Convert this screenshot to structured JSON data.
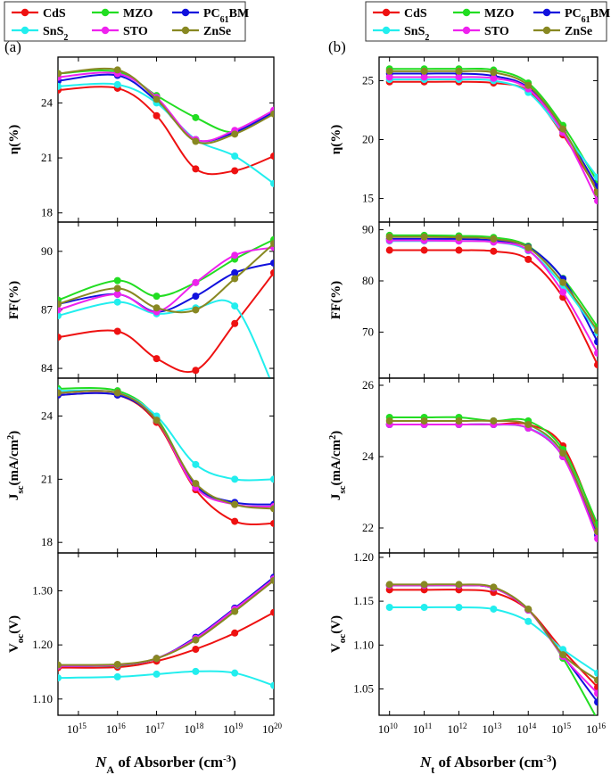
{
  "legend": [
    {
      "name": "CdS",
      "color": "#ee1111"
    },
    {
      "name": "MZO",
      "color": "#22dd22"
    },
    {
      "name": "PC",
      "sub": "61",
      "tail": "BM",
      "color": "#1111dd"
    },
    {
      "name": "SnS",
      "sub": "2",
      "tail": "",
      "color": "#22eeee"
    },
    {
      "name": "STO",
      "color": "#ee22ee"
    },
    {
      "name": "ZnSe",
      "color": "#888822"
    }
  ],
  "panels": [
    {
      "label": "(a)",
      "xlabel_sym": "N",
      "xlabel_sub": "A",
      "xlabel_rest": " of Absorber (cm",
      "xlabel_sup": "-3",
      "xlabel_end": ")"
    },
    {
      "label": "(b)",
      "xlabel_sym": "N",
      "xlabel_sub": "t",
      "xlabel_rest": " of Absorber (cm",
      "xlabel_sup": "-3",
      "xlabel_end": ")"
    }
  ],
  "chart_data": [
    {
      "panel": "(a)",
      "type": "line",
      "x_scale": "log",
      "xlim": [
        300000000000000.0,
        1e+20
      ],
      "x_ticks": [
        {
          "v": 1000000000000000.0,
          "label": "15"
        },
        {
          "v": 1e+16,
          "label": "16"
        },
        {
          "v": 1e+17,
          "label": "17"
        },
        {
          "v": 1e+18,
          "label": "18"
        },
        {
          "v": 1e+19,
          "label": "19"
        },
        {
          "v": 1e+20,
          "label": "20"
        }
      ],
      "x": [
        300000000000000.0,
        1e+16,
        1e+17,
        1e+18,
        1e+19,
        1e+20
      ],
      "subplots": [
        {
          "ylabel": "η(%)",
          "ylim": [
            17.5,
            26.5
          ],
          "yticks": [
            18,
            21,
            24
          ],
          "series": [
            {
              "name": "CdS",
              "values": [
                24.7,
                24.8,
                23.3,
                20.4,
                20.3,
                21.1
              ]
            },
            {
              "name": "MZO",
              "values": [
                25.6,
                25.7,
                24.4,
                23.2,
                22.4,
                23.5
              ]
            },
            {
              "name": "PC61BM",
              "values": [
                25.2,
                25.5,
                24.1,
                22.0,
                22.4,
                23.5
              ]
            },
            {
              "name": "SnS2",
              "values": [
                24.9,
                25.0,
                24.0,
                22.0,
                21.1,
                19.6
              ]
            },
            {
              "name": "STO",
              "values": [
                25.4,
                25.6,
                24.3,
                22.0,
                22.5,
                23.6
              ]
            },
            {
              "name": "ZnSe",
              "values": [
                25.6,
                25.8,
                24.2,
                21.9,
                22.3,
                23.4
              ]
            }
          ]
        },
        {
          "ylabel": "FF(%)",
          "ylim": [
            83.5,
            91.5
          ],
          "yticks": [
            84,
            87,
            90
          ],
          "series": [
            {
              "name": "CdS",
              "values": [
                85.6,
                85.9,
                84.5,
                83.9,
                86.3,
                88.9
              ]
            },
            {
              "name": "MZO",
              "values": [
                87.5,
                88.5,
                87.7,
                88.4,
                89.6,
                90.6
              ]
            },
            {
              "name": "PC61BM",
              "values": [
                87.3,
                87.8,
                86.9,
                87.7,
                88.9,
                89.4
              ]
            },
            {
              "name": "SnS2",
              "values": [
                86.7,
                87.4,
                86.8,
                87.1,
                87.2,
                83.0
              ]
            },
            {
              "name": "STO",
              "values": [
                87.0,
                87.8,
                86.9,
                88.4,
                89.8,
                90.2
              ]
            },
            {
              "name": "ZnSe",
              "values": [
                87.3,
                88.1,
                87.1,
                87.0,
                88.6,
                90.4
              ]
            }
          ]
        },
        {
          "ylabel_main": "J",
          "ylabel_sub": "sc",
          "ylabel_rest": "(mA/cm",
          "ylabel_sup": "2",
          "ylabel_end": ")",
          "ylim": [
            17.5,
            25.8
          ],
          "yticks": [
            18,
            21,
            24
          ],
          "series": [
            {
              "name": "CdS",
              "values": [
                25.0,
                25.0,
                23.7,
                20.5,
                19.0,
                18.9
              ]
            },
            {
              "name": "MZO",
              "values": [
                25.3,
                25.2,
                23.9,
                20.7,
                19.8,
                19.7
              ]
            },
            {
              "name": "PC61BM",
              "values": [
                25.0,
                25.0,
                23.8,
                20.7,
                19.9,
                19.8
              ]
            },
            {
              "name": "SnS2",
              "values": [
                25.2,
                25.1,
                24.0,
                21.7,
                21.0,
                21.0
              ]
            },
            {
              "name": "STO",
              "values": [
                25.1,
                25.1,
                23.8,
                20.6,
                19.8,
                19.7
              ]
            },
            {
              "name": "ZnSe",
              "values": [
                25.1,
                25.1,
                23.8,
                20.8,
                19.8,
                19.6
              ]
            }
          ]
        },
        {
          "ylabel_main": "V",
          "ylabel_sub": "oc",
          "ylabel_rest": "(V)",
          "ylabel_end": "",
          "ylim": [
            1.07,
            1.37
          ],
          "yticks": [
            1.1,
            1.2,
            1.3
          ],
          "ytick_labels": [
            "1.10",
            "1.20",
            "1.30"
          ],
          "series": [
            {
              "name": "CdS",
              "values": [
                1.158,
                1.159,
                1.17,
                1.192,
                1.222,
                1.26
              ]
            },
            {
              "name": "MZO",
              "values": [
                1.161,
                1.162,
                1.175,
                1.21,
                1.262,
                1.322
              ]
            },
            {
              "name": "PC61BM",
              "values": [
                1.161,
                1.163,
                1.175,
                1.214,
                1.268,
                1.325
              ]
            },
            {
              "name": "SnS2",
              "values": [
                1.139,
                1.141,
                1.146,
                1.151,
                1.148,
                1.125
              ]
            },
            {
              "name": "STO",
              "values": [
                1.161,
                1.163,
                1.175,
                1.212,
                1.266,
                1.322
              ]
            },
            {
              "name": "ZnSe",
              "values": [
                1.163,
                1.164,
                1.175,
                1.209,
                1.262,
                1.319
              ]
            }
          ]
        }
      ]
    },
    {
      "panel": "(b)",
      "type": "line",
      "x_scale": "log",
      "xlim": [
        5000000000.0,
        1e+16
      ],
      "x_ticks": [
        {
          "v": 10000000000.0,
          "label": "10"
        },
        {
          "v": 100000000000.0,
          "label": "11"
        },
        {
          "v": 1000000000000.0,
          "label": "12"
        },
        {
          "v": 10000000000000.0,
          "label": "13"
        },
        {
          "v": 100000000000000.0,
          "label": "14"
        },
        {
          "v": 1000000000000000.0,
          "label": "15"
        },
        {
          "v": 1e+16,
          "label": "16"
        }
      ],
      "x": [
        10000000000.0,
        100000000000.0,
        1000000000000.0,
        10000000000000.0,
        100000000000000.0,
        1000000000000000.0,
        1e+16
      ],
      "subplots": [
        {
          "ylabel": "η(%)",
          "ylim": [
            13,
            27
          ],
          "yticks": [
            15,
            20,
            25
          ],
          "series": [
            {
              "name": "CdS",
              "values": [
                24.9,
                24.9,
                24.9,
                24.8,
                24.1,
                20.4,
                15.7
              ]
            },
            {
              "name": "MZO",
              "values": [
                26.0,
                26.0,
                26.0,
                25.9,
                24.8,
                21.2,
                16.4
              ]
            },
            {
              "name": "PC61BM",
              "values": [
                25.6,
                25.6,
                25.6,
                25.4,
                24.4,
                20.8,
                16.0
              ]
            },
            {
              "name": "SnS2",
              "values": [
                25.1,
                25.1,
                25.1,
                25.0,
                24.0,
                20.6,
                16.8
              ]
            },
            {
              "name": "STO",
              "values": [
                25.3,
                25.3,
                25.3,
                25.2,
                24.3,
                20.6,
                14.8
              ]
            },
            {
              "name": "ZnSe",
              "values": [
                25.8,
                25.8,
                25.8,
                25.7,
                24.6,
                20.9,
                15.5
              ]
            }
          ]
        },
        {
          "ylabel": "FF(%)",
          "ylim": [
            61,
            91.5
          ],
          "yticks": [
            70,
            80,
            90
          ],
          "series": [
            {
              "name": "CdS",
              "values": [
                86.0,
                86.0,
                86.0,
                85.8,
                84.2,
                76.8,
                63.6
              ]
            },
            {
              "name": "MZO",
              "values": [
                88.9,
                88.9,
                88.8,
                88.5,
                86.8,
                80.5,
                71.0
              ]
            },
            {
              "name": "PC61BM",
              "values": [
                88.2,
                88.2,
                88.2,
                87.9,
                86.6,
                80.4,
                68.1
              ]
            },
            {
              "name": "SnS2",
              "values": [
                87.8,
                87.8,
                87.8,
                87.6,
                85.9,
                79.1,
                69.9
              ]
            },
            {
              "name": "STO",
              "values": [
                87.9,
                87.9,
                87.8,
                87.6,
                86.0,
                77.8,
                65.9
              ]
            },
            {
              "name": "ZnSe",
              "values": [
                88.6,
                88.6,
                88.5,
                88.2,
                86.5,
                79.7,
                70.3
              ]
            }
          ]
        },
        {
          "ylabel_main": "J",
          "ylabel_sub": "sc",
          "ylabel_rest": "(mA/cm",
          "ylabel_sup": "2",
          "ylabel_end": ")",
          "ylim": [
            21.3,
            26.2
          ],
          "yticks": [
            22,
            24,
            26
          ],
          "series": [
            {
              "name": "CdS",
              "values": [
                24.9,
                24.9,
                24.9,
                24.9,
                24.9,
                24.3,
                22.0
              ]
            },
            {
              "name": "MZO",
              "values": [
                25.1,
                25.1,
                25.1,
                25.0,
                25.0,
                24.2,
                22.1
              ]
            },
            {
              "name": "PC61BM",
              "values": [
                24.9,
                24.9,
                24.9,
                24.9,
                24.8,
                24.0,
                21.8
              ]
            },
            {
              "name": "SnS2",
              "values": [
                24.9,
                24.9,
                24.9,
                24.9,
                24.8,
                24.1,
                21.9
              ]
            },
            {
              "name": "STO",
              "values": [
                24.9,
                24.9,
                24.9,
                24.9,
                24.8,
                24.0,
                21.7
              ]
            },
            {
              "name": "ZnSe",
              "values": [
                25.0,
                25.0,
                25.0,
                25.0,
                24.9,
                24.1,
                21.9
              ]
            }
          ]
        },
        {
          "ylabel_main": "V",
          "ylabel_sub": "oc",
          "ylabel_rest": "(V)",
          "ylabel_end": "",
          "ylim": [
            1.02,
            1.205
          ],
          "yticks": [
            1.05,
            1.1,
            1.15,
            1.2
          ],
          "ytick_labels": [
            "1.05",
            "1.10",
            "1.15",
            "1.20"
          ],
          "series": [
            {
              "name": "CdS",
              "values": [
                1.163,
                1.163,
                1.163,
                1.16,
                1.14,
                1.094,
                1.052
              ]
            },
            {
              "name": "MZO",
              "values": [
                1.168,
                1.168,
                1.168,
                1.165,
                1.14,
                1.085,
                1.015
              ]
            },
            {
              "name": "PC61BM",
              "values": [
                1.168,
                1.168,
                1.168,
                1.165,
                1.14,
                1.088,
                1.035
              ]
            },
            {
              "name": "SnS2",
              "values": [
                1.143,
                1.143,
                1.143,
                1.141,
                1.127,
                1.095,
                1.068
              ]
            },
            {
              "name": "STO",
              "values": [
                1.168,
                1.168,
                1.168,
                1.165,
                1.14,
                1.087,
                1.045
              ]
            },
            {
              "name": "ZnSe",
              "values": [
                1.169,
                1.169,
                1.169,
                1.166,
                1.141,
                1.089,
                1.06
              ]
            }
          ]
        }
      ]
    }
  ]
}
